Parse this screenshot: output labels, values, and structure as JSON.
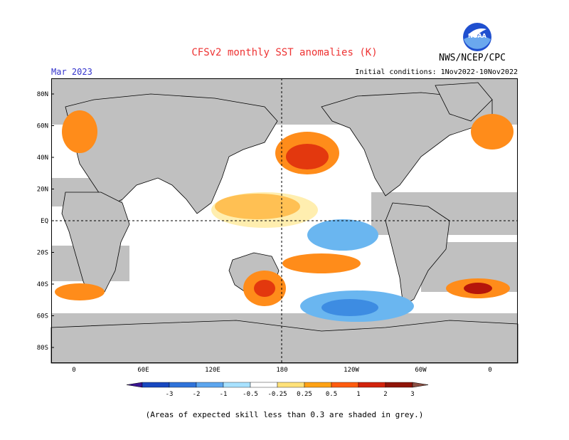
{
  "header": {
    "title": "CFSv2 monthly SST anomalies (K)",
    "month": "Mar 2023",
    "initial_conditions": "Initial conditions: 1Nov2022-10Nov2022",
    "org": "NWS/NCEP/CPC",
    "logo_text": "NOAA"
  },
  "map": {
    "lat_labels": [
      "80N",
      "60N",
      "40N",
      "20N",
      "EQ",
      "20S",
      "40S",
      "60S",
      "80S"
    ],
    "lon_labels": [
      "0",
      "60E",
      "120E",
      "180",
      "120W",
      "60W",
      "0"
    ],
    "colors": {
      "land": "#c0c0c0",
      "skill_grey": "#c0c0c0",
      "pos_025": "#ffe27a",
      "pos_05": "#ff8c1a",
      "pos_1": "#e3380e",
      "pos_2": "#b5150b",
      "pos_3": "#6e2418",
      "neg_025": "#b0e7ff",
      "neg_05": "#6ab6f0",
      "neg_1": "#3d8ce2",
      "neg_2": "#1c5fcf",
      "neg_3": "#2b1a9e"
    }
  },
  "colorbar": {
    "labels": [
      "-3",
      "-2",
      "-1",
      "-0.5",
      "-0.25",
      "0.25",
      "0.5",
      "1",
      "2",
      "3"
    ],
    "colors": [
      "#3b1593",
      "#1848c0",
      "#2f73da",
      "#5da6ef",
      "#a8e2ff",
      "#ffffff",
      "#ffe27a",
      "#ffa214",
      "#ff5c0f",
      "#d2230c",
      "#901408",
      "#8a4f43"
    ]
  },
  "footnote": "(Areas of expected skill less than 0.3 are shaded in grey.)"
}
